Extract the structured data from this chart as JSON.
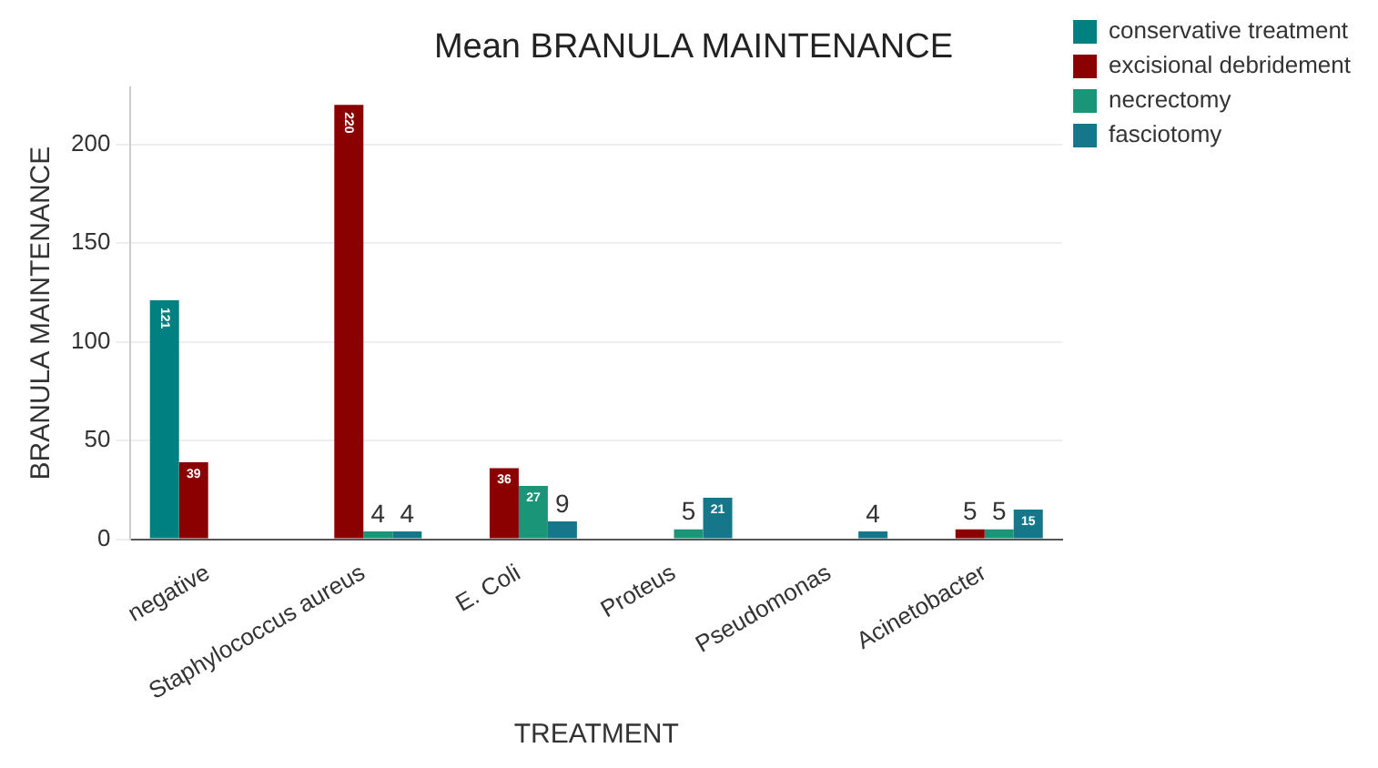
{
  "chart_data": {
    "type": "bar",
    "title": "Mean BRANULA MAINTENANCE",
    "xlabel": "TREATMENT",
    "ylabel": "BRANULA MAINTENANCE",
    "categories": [
      "negative",
      "Staphylococcus aureus",
      "E. Coli",
      "Proteus",
      "Pseudomonas",
      "Acinetobacter"
    ],
    "series": [
      {
        "name": "conservative treatment",
        "color": "#008080",
        "values": [
          121,
          null,
          null,
          null,
          null,
          null
        ]
      },
      {
        "name": "excisional debridement",
        "color": "#8b0000",
        "values": [
          39,
          220,
          36,
          null,
          null,
          5
        ]
      },
      {
        "name": "necrectomy",
        "color": "#1b9577",
        "values": [
          null,
          4,
          27,
          5,
          null,
          5
        ]
      },
      {
        "name": "fasciotomy",
        "color": "#16768a",
        "values": [
          null,
          4,
          9,
          21,
          4,
          15
        ]
      }
    ],
    "ylim": [
      0,
      229
    ],
    "yticks": [
      0,
      50,
      100,
      150,
      200
    ],
    "grid": "y",
    "legend": "top right",
    "data_labels": true
  }
}
